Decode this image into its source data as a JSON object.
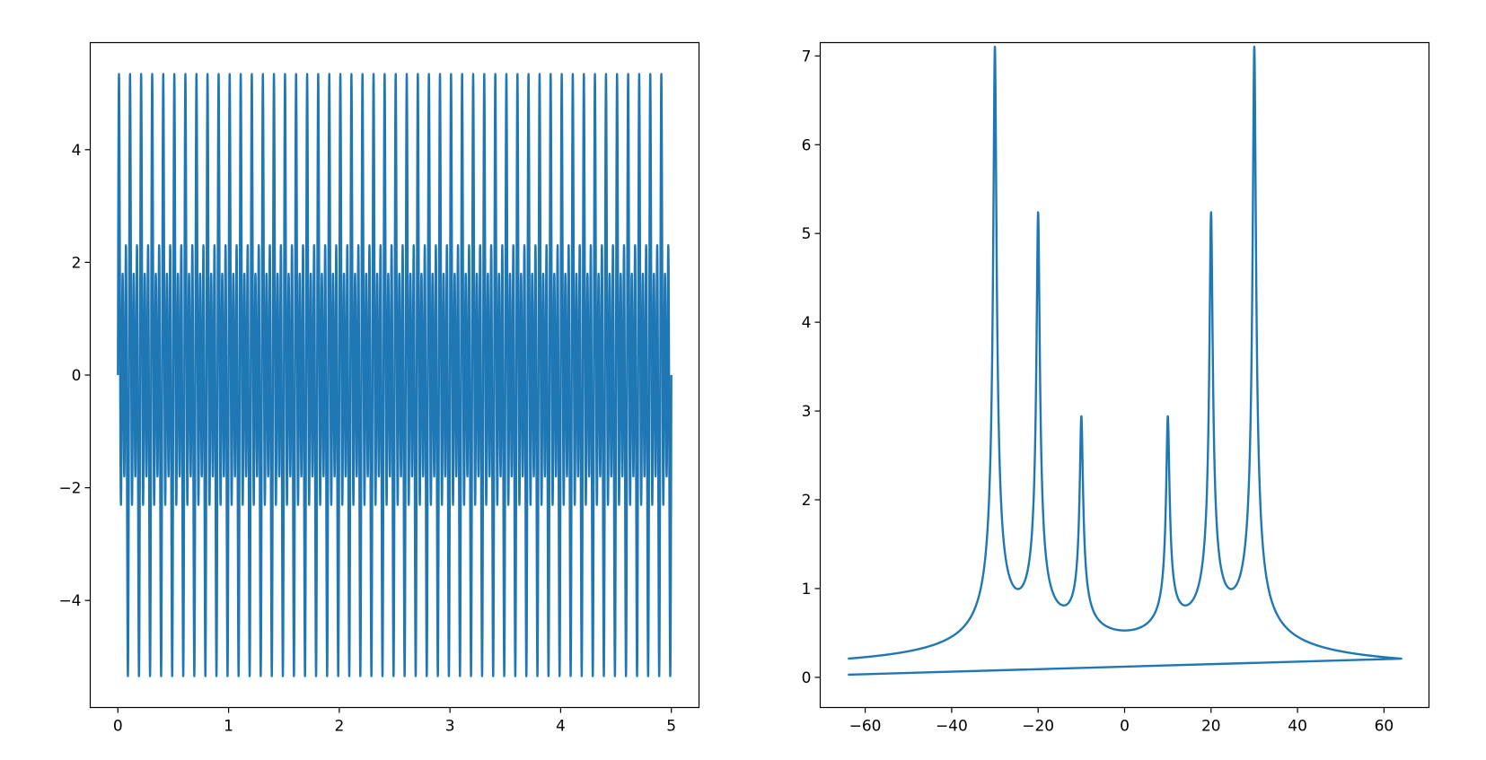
{
  "figure": {
    "background": "#ffffff"
  },
  "chart_data": [
    {
      "type": "line",
      "title": "",
      "xlabel": "",
      "ylabel": "",
      "xlim": [
        -0.25,
        5.25
      ],
      "ylim": [
        -5.9,
        5.9
      ],
      "xticks": [
        0,
        1,
        2,
        3,
        4,
        5
      ],
      "xtick_labels": [
        "0",
        "1",
        "2",
        "3",
        "4",
        "5"
      ],
      "yticks": [
        -4,
        -2,
        0,
        2,
        4
      ],
      "ytick_labels": [
        "−4",
        "−2",
        "0",
        "2",
        "4"
      ],
      "grid": false,
      "legend": "none",
      "series": [
        {
          "color": "#1f77b4",
          "signal": {
            "t_start": 0,
            "t_end": 5,
            "components": [
              {
                "frequency": 10,
                "amplitude": 1
              },
              {
                "frequency": 20,
                "amplitude": 2
              },
              {
                "frequency": 30,
                "amplitude": 3
              }
            ]
          }
        }
      ]
    },
    {
      "type": "line",
      "title": "",
      "xlabel": "",
      "ylabel": "",
      "xlim": [
        -70.4,
        70.4
      ],
      "ylim": [
        -0.34,
        7.15
      ],
      "xticks": [
        -60,
        -40,
        -20,
        0,
        20,
        40,
        60
      ],
      "xtick_labels": [
        "−60",
        "−40",
        "−20",
        "0",
        "20",
        "40",
        "60"
      ],
      "yticks": [
        0,
        1,
        2,
        3,
        4,
        5,
        6,
        7
      ],
      "ytick_labels": [
        "0",
        "1",
        "2",
        "3",
        "4",
        "5",
        "6",
        "7"
      ],
      "grid": false,
      "legend": "none",
      "series": [
        {
          "color": "#1f77b4",
          "x_range": [
            -64,
            64
          ],
          "baseline": 0.03,
          "peaks": [
            {
              "x": -30,
              "y": 6.8
            },
            {
              "x": -20,
              "y": 4.8
            },
            {
              "x": -10,
              "y": 2.5
            },
            {
              "x": 10,
              "y": 2.5
            },
            {
              "x": 20,
              "y": 4.8
            },
            {
              "x": 30,
              "y": 6.8
            }
          ]
        }
      ]
    }
  ]
}
